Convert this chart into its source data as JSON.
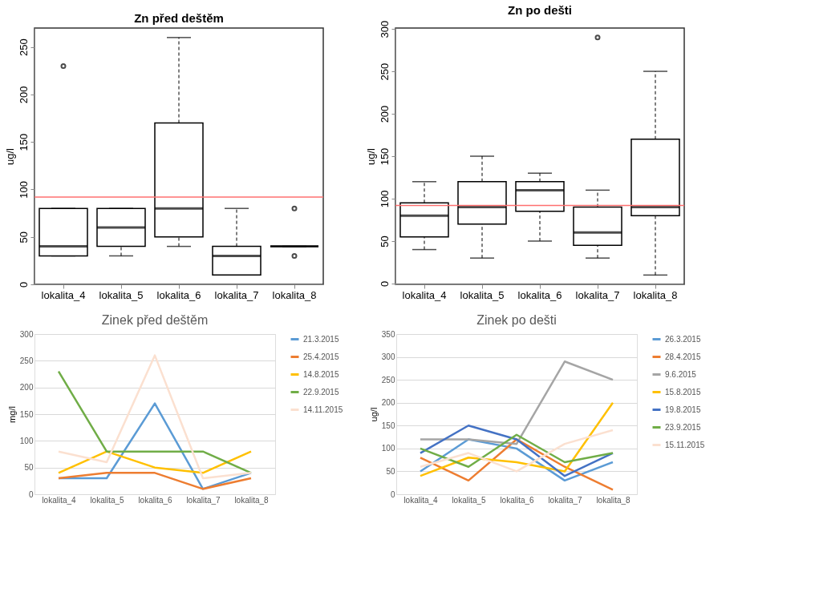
{
  "chart_data": [
    {
      "type": "box",
      "title": "Zn před deštěm",
      "ylabel": "ug/l",
      "categories": [
        "lokalita_4",
        "lokalita_5",
        "lokalita_6",
        "lokalita_7",
        "lokalita_8"
      ],
      "boxes": [
        {
          "low": 30,
          "q1": 30,
          "median": 40,
          "q3": 80,
          "high": 80,
          "outliers": [
            230
          ]
        },
        {
          "low": 30,
          "q1": 40,
          "median": 60,
          "q3": 80,
          "high": 80
        },
        {
          "low": 40,
          "q1": 50,
          "median": 80,
          "q3": 170,
          "high": 260
        },
        {
          "low": 10,
          "q1": 10,
          "median": 30,
          "q3": 40,
          "high": 80
        },
        {
          "low": 40,
          "q1": 40,
          "median": 40,
          "q3": 40,
          "high": 40,
          "outliers": [
            30,
            80
          ]
        }
      ],
      "ylim": [
        0,
        270
      ],
      "yticks": [
        0,
        50,
        100,
        150,
        200,
        250
      ],
      "grid": false,
      "ref_lines": [
        {
          "axis": "y",
          "value": 92,
          "color": "#ff7070"
        }
      ]
    },
    {
      "type": "box",
      "title": "Zn po dešti",
      "ylabel": "ug/l",
      "categories": [
        "lokalita_4",
        "lokalita_5",
        "lokalita_6",
        "lokalita_7",
        "lokalita_8"
      ],
      "boxes": [
        {
          "low": 40,
          "q1": 55,
          "median": 80,
          "q3": 95,
          "high": 120
        },
        {
          "low": 30,
          "q1": 70,
          "median": 90,
          "q3": 120,
          "high": 150
        },
        {
          "low": 50,
          "q1": 85,
          "median": 110,
          "q3": 120,
          "high": 130
        },
        {
          "low": 30,
          "q1": 45,
          "median": 60,
          "q3": 90,
          "high": 110,
          "outliers": [
            290
          ]
        },
        {
          "low": 10,
          "q1": 80,
          "median": 90,
          "q3": 170,
          "high": 250
        }
      ],
      "ylim": [
        -1,
        301
      ],
      "yticks": [
        0,
        50,
        100,
        150,
        200,
        250,
        300
      ],
      "grid": false,
      "ref_lines": [
        {
          "axis": "y",
          "value": 92,
          "color": "#ff7070"
        }
      ]
    },
    {
      "type": "line",
      "title": "Zinek před deštěm",
      "ylabel": "mg/l",
      "categories": [
        "lokalita_4",
        "lokalita_5",
        "lokalita_6",
        "lokalita_7",
        "lokalita_8"
      ],
      "series": [
        {
          "name": "21.3.2015",
          "color": "#5b9bd5",
          "values": [
            30,
            30,
            170,
            10,
            40
          ]
        },
        {
          "name": "25.4.2015",
          "color": "#ed7d31",
          "values": [
            30,
            40,
            40,
            10,
            30
          ]
        },
        {
          "name": "14.8.2015",
          "color": "#ffc000",
          "values": [
            40,
            80,
            50,
            40,
            80
          ]
        },
        {
          "name": "22.9.2015",
          "color": "#70ad47",
          "values": [
            230,
            80,
            80,
            80,
            40
          ]
        },
        {
          "name": "14.11.2015",
          "color": "#fbe0d0",
          "values": [
            80,
            60,
            260,
            30,
            40
          ]
        }
      ],
      "ylim": [
        0,
        300
      ],
      "yticks": [
        0,
        50,
        100,
        150,
        200,
        250,
        300
      ],
      "grid": "y",
      "legend": "right",
      "marker": "none"
    },
    {
      "type": "line",
      "title": "Zinek po dešti",
      "ylabel": "ug/l",
      "categories": [
        "lokalita_4",
        "lokalita_5",
        "lokalita_6",
        "lokalita_7",
        "lokalita_8"
      ],
      "series": [
        {
          "name": "26.3.2015",
          "color": "#5b9bd5",
          "values": [
            50,
            120,
            100,
            30,
            70
          ]
        },
        {
          "name": "28.4.2015",
          "color": "#ed7d31",
          "values": [
            80,
            30,
            120,
            60,
            10
          ]
        },
        {
          "name": "9.6.2015",
          "color": "#a5a5a5",
          "values": [
            120,
            120,
            110,
            290,
            250
          ]
        },
        {
          "name": "15.8.2015",
          "color": "#ffc000",
          "values": [
            40,
            80,
            70,
            50,
            200
          ]
        },
        {
          "name": "19.8.2015",
          "color": "#4472c4",
          "values": [
            90,
            150,
            120,
            40,
            90
          ]
        },
        {
          "name": "23.9.2015",
          "color": "#70ad47",
          "values": [
            100,
            60,
            130,
            70,
            90
          ]
        },
        {
          "name": "15.11.2015",
          "color": "#fbe0d0",
          "values": [
            60,
            90,
            50,
            110,
            140
          ]
        }
      ],
      "ylim": [
        0,
        350
      ],
      "yticks": [
        0,
        50,
        100,
        150,
        200,
        250,
        300,
        350
      ],
      "grid": "y",
      "legend": "right",
      "marker": "none"
    }
  ]
}
